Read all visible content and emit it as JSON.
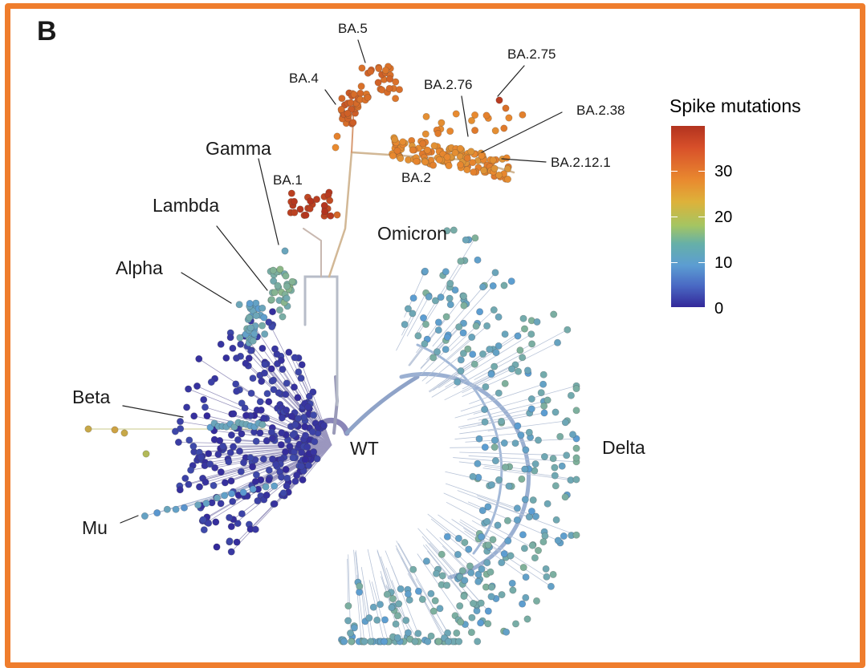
{
  "panel_label": "B",
  "clade_labels": {
    "ba5": "BA.5",
    "ba4": "BA.4",
    "ba275": "BA.2.75",
    "ba276": "BA.2.76",
    "ba238": "BA.2.38",
    "ba2121": "BA.2.12.1",
    "ba2": "BA.2",
    "ba1": "BA.1",
    "omicron": "Omicron",
    "gamma": "Gamma",
    "lambda": "Lambda",
    "alpha": "Alpha",
    "beta": "Beta",
    "mu": "Mu",
    "wt": "WT",
    "delta": "Delta"
  },
  "legend": {
    "title": "Spike mutations",
    "ticks": [
      "0",
      "10",
      "20",
      "30"
    ],
    "colors": [
      "#33289a",
      "#5c9dd2",
      "#a4c562",
      "#e98a2f",
      "#b2331f"
    ]
  }
}
